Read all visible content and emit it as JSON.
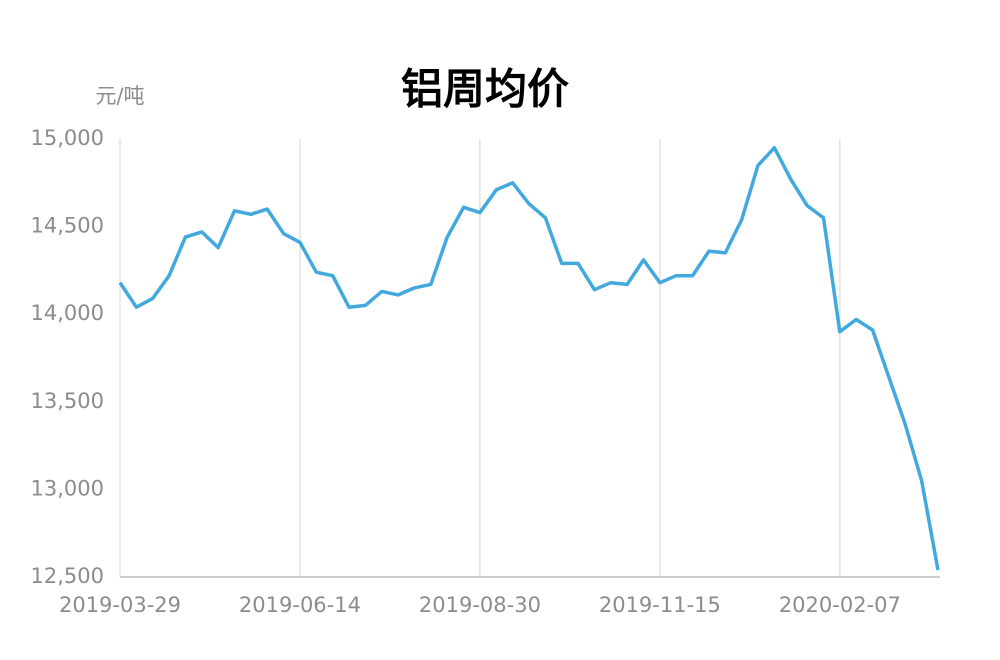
{
  "chart_data": {
    "type": "line",
    "title": "铝周均价",
    "y_unit": "元/吨",
    "categories": [
      "2019-03-29",
      null,
      null,
      null,
      null,
      null,
      null,
      null,
      null,
      null,
      null,
      "2019-06-14",
      null,
      null,
      null,
      null,
      null,
      null,
      null,
      null,
      null,
      null,
      "2019-08-30",
      null,
      null,
      null,
      null,
      null,
      null,
      null,
      null,
      null,
      null,
      "2019-11-15",
      null,
      null,
      null,
      null,
      null,
      null,
      null,
      null,
      null,
      null,
      "2020-02-07",
      null,
      null,
      null,
      null,
      null,
      null
    ],
    "series": [
      {
        "name": "铝周均价",
        "color": "#41a9dd",
        "values": [
          14180,
          14040,
          14090,
          14220,
          14440,
          14470,
          14380,
          14590,
          14570,
          14600,
          14460,
          14410,
          14240,
          14220,
          14040,
          14050,
          14130,
          14110,
          14150,
          14170,
          14440,
          14610,
          14580,
          14710,
          14750,
          14630,
          14550,
          14290,
          14290,
          14140,
          14180,
          14170,
          14310,
          14180,
          14220,
          14220,
          14360,
          14350,
          14540,
          14850,
          14950,
          14770,
          14620,
          14550,
          13900,
          13970,
          13910,
          13640,
          13370,
          13050,
          12540
        ]
      }
    ],
    "ylim": [
      12500,
      15000
    ],
    "yticks": [
      {
        "value": 12500,
        "label": "12,500"
      },
      {
        "value": 13000,
        "label": "13,000"
      },
      {
        "value": 13500,
        "label": "13,500"
      },
      {
        "value": 14000,
        "label": "14,000"
      },
      {
        "value": 14500,
        "label": "14,500"
      },
      {
        "value": 15000,
        "label": "15,000"
      }
    ],
    "grid": true
  }
}
